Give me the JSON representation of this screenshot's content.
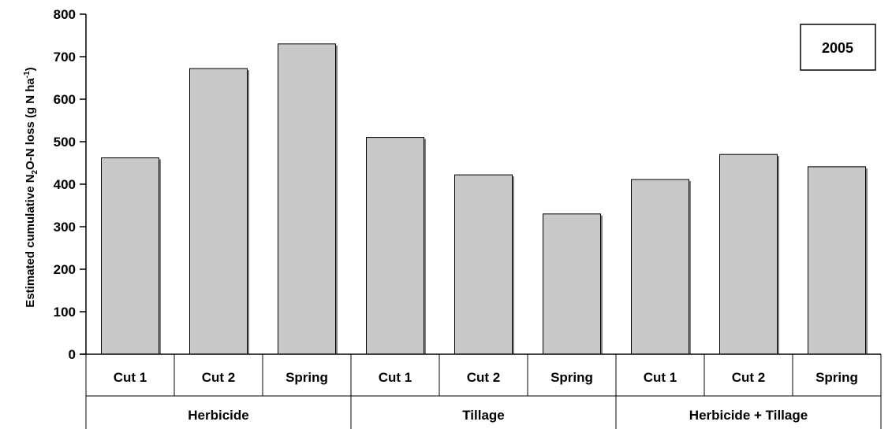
{
  "chart_data": {
    "type": "bar",
    "categories": [
      "Cut 1",
      "Cut 2",
      "Spring",
      "Cut 1",
      "Cut 2",
      "Spring",
      "Cut 1",
      "Cut 2",
      "Spring"
    ],
    "groups": [
      {
        "label": "Herbicide",
        "category_count": 3
      },
      {
        "label": "Tillage",
        "category_count": 3
      },
      {
        "label": "Herbicide + Tillage",
        "category_count": 3
      }
    ],
    "values": [
      462,
      672,
      730,
      510,
      422,
      330,
      411,
      470,
      441
    ],
    "ylabel_parts": [
      "Estimated cumulative N",
      "2",
      "O-N loss (g N ha",
      "-1",
      ")"
    ],
    "ylim": [
      0,
      800
    ],
    "yticks": [
      0,
      100,
      200,
      300,
      400,
      500,
      600,
      700,
      800
    ],
    "legend_box_text": "2005",
    "bar_color": "#c8c8c8",
    "grid": false
  }
}
